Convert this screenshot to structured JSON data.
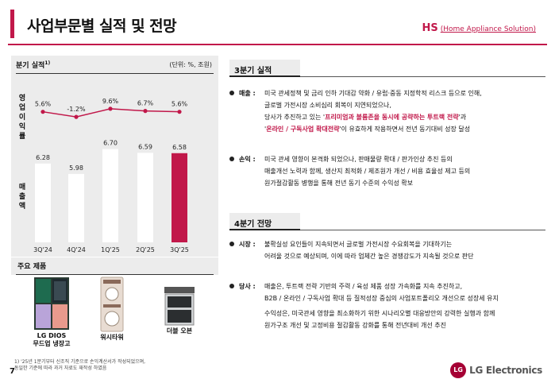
{
  "header": {
    "title": "사업부문별 실적 및 전망",
    "hs_code": "HS",
    "hs_name": "(Home Appliance Solution)"
  },
  "performance": {
    "title": "분기 실적",
    "title_note": "1)",
    "unit": "(단위: %, 조원)",
    "ylabel_op": "영업이익률",
    "ylabel_sales": "매출액"
  },
  "chart_data": {
    "type": "bar",
    "categories": [
      "3Q'24",
      "4Q'24",
      "1Q'25",
      "2Q'25",
      "3Q'25"
    ],
    "series": [
      {
        "name": "매출액",
        "values": [
          6.28,
          5.98,
          6.7,
          6.59,
          6.58
        ],
        "value_labels": [
          "6.28",
          "5.98",
          "6.70",
          "6.59",
          "6.58"
        ]
      },
      {
        "name": "영업이익률",
        "values": [
          5.6,
          -1.2,
          9.6,
          6.7,
          5.6
        ],
        "value_labels": [
          "5.6%",
          "-1.2%",
          "9.6%",
          "6.7%",
          "5.6%"
        ]
      }
    ],
    "highlight_index": 4,
    "colors": {
      "bar": "#ffffff",
      "bar_highlight": "#c1184a",
      "line": "#c1184a"
    }
  },
  "products": {
    "title": "주요 제품",
    "items": [
      {
        "label_line1": "LG DIOS",
        "label_line2": "무드업 냉장고",
        "icon": "refrigerator-icon"
      },
      {
        "label_line1": "워시타워",
        "label_line2": "",
        "icon": "washtower-icon"
      },
      {
        "label_line1": "더블 오븐",
        "label_line2": "",
        "icon": "oven-icon"
      }
    ]
  },
  "q3": {
    "title": "3분기 실적",
    "sales_head": "매출 :",
    "sales_l1": "미국 관세정책 및 금리 인하 기대감 약화 / 유럽·중동 지정학적 리스크 등으로 인해,",
    "sales_l2": "글로벌 가전시장 소비심리 회복이 지연되었으나,",
    "sales_l3a": "당사가 추진하고 있는 '",
    "sales_l3b": "프리미엄과 볼륨존을 동시에 공략하는 투트랙 전략",
    "sales_l3c": "'과",
    "sales_l4a": "'",
    "sales_l4b": "온라인 / 구독사업 확대전략",
    "sales_l4c": "'이 유효하게 작용하면서 전년 동기대비 성장 달성",
    "profit_head": "손익 :",
    "profit_l1": "미국 관세 영향이 본격화 되었으나, 판매물량 확대 / 판가인상 추진 등의",
    "profit_l2": "매출개선 노력과 함께, 생산지 최적화 / 제조원가 개선 / 비용 효율성 제고 등의",
    "profit_l3": "원가절감활동 병행을 통해 전년 동기 수준의 수익성 확보"
  },
  "q4": {
    "title": "4분기 전망",
    "market_head": "시장 :",
    "market_l1": "불확실성 요인들이 지속되면서 글로벌 가전시장 수요회복을 기대하기는",
    "market_l2": "어려울 것으로 예상되며, 이에 따라 업체간 높은 경쟁강도가 지속될 것으로 판단",
    "company_head": "당사 :",
    "company_l1": "매출은, 투트랙 전략 기반의 주력 / 육성 제품 성장 가속화를 지속 추진하고,",
    "company_l2": "B2B / 온라인 / 구독사업 확대 등 질적성장 중심의 사업포트폴리오 개선으로 성장세 유지",
    "company_l3": "수익성은, 미국관세 영향을 최소화하기 위한 시나리오별 대응방안의 강력한 실행과 함께",
    "company_l4": "원가구조 개선 및 고정비용 절감활동 강화를 통해 전년대비 개선 추진"
  },
  "footer": {
    "note_l1": "1) '25년 1분기부터 신조직 기준으로 손익계산서가 작성되었으며,",
    "note_l2": "동일한 기준에 따라 과거 자료도 재작성 하였음",
    "page": "7",
    "brand": "LG Electronics",
    "brand_logo": "LG"
  }
}
